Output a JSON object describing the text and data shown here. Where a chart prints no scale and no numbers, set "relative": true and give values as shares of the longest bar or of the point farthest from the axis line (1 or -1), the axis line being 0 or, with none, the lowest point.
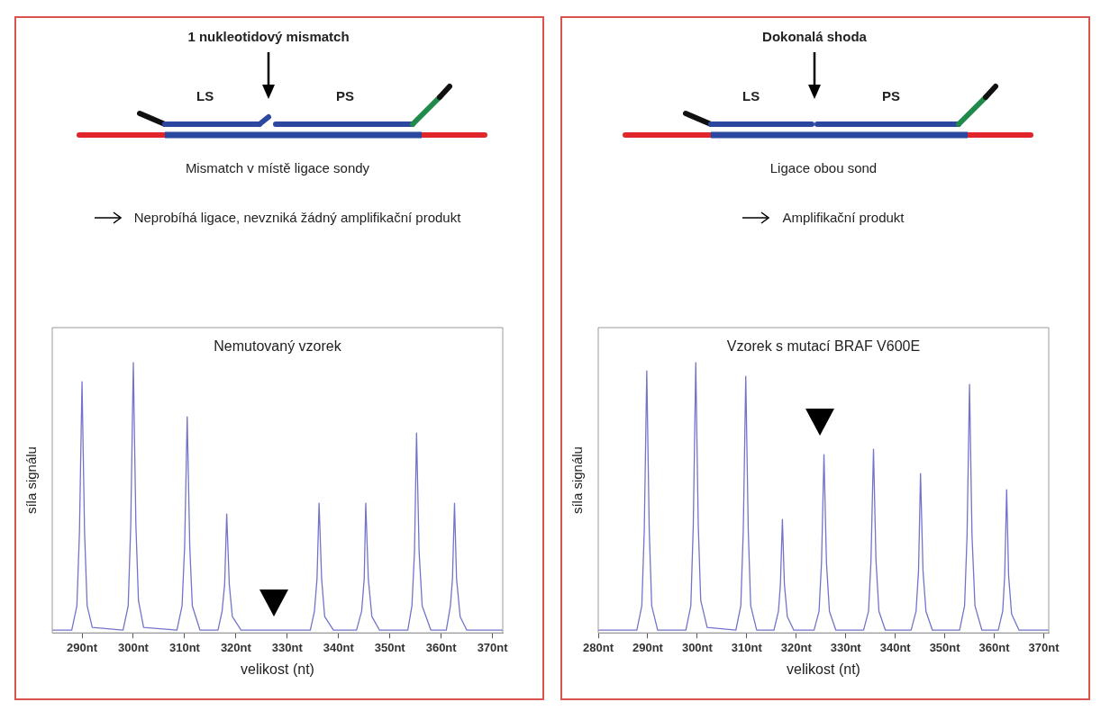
{
  "chart_data": [
    {
      "type": "line",
      "title": "Nemutovaný vzorek",
      "xlabel": "velikost (nt)",
      "ylabel": "síla signálu",
      "relative": true,
      "color": "#7373cc",
      "tick_labels": "x",
      "annotations": [
        "1 nukleotidový mismatch",
        "LS",
        "PS",
        "Mismatch v místě ligace sondy",
        "Neprobíhá ligace, nevzniká žádný amplifikační produkt"
      ],
      "xlim": [
        284.2,
        372
      ],
      "xticks": [
        {
          "value": 290,
          "label": "290nt"
        },
        {
          "value": 300,
          "label": "300nt"
        },
        {
          "value": 310,
          "label": "310nt"
        },
        {
          "value": 320,
          "label": "320nt"
        },
        {
          "value": 330,
          "label": "330nt"
        },
        {
          "value": 340,
          "label": "340nt"
        },
        {
          "value": 350,
          "label": "350nt"
        },
        {
          "value": 360,
          "label": "360nt"
        },
        {
          "value": 370,
          "label": "370nt"
        }
      ],
      "x": [
        284.2,
        288,
        289,
        289.5,
        290,
        290.5,
        291,
        292,
        298,
        299,
        299.5,
        300,
        300.5,
        301,
        302,
        308.5,
        309.5,
        310,
        310.5,
        311,
        311.5,
        313,
        316.5,
        317.3,
        317.8,
        318.2,
        318.7,
        319.3,
        321,
        327,
        334.5,
        335.3,
        335.8,
        336.2,
        336.7,
        337.3,
        339,
        343.5,
        344.5,
        345,
        345.3,
        345.8,
        346.5,
        348,
        353.5,
        354.3,
        354.8,
        355.2,
        355.7,
        356.3,
        358,
        361,
        361.8,
        362.2,
        362.6,
        363,
        363.7,
        365,
        372
      ],
      "values": [
        0.01,
        0.01,
        0.1,
        0.37,
        0.93,
        0.37,
        0.1,
        0.02,
        0.01,
        0.1,
        0.4,
        1,
        0.4,
        0.12,
        0.02,
        0.01,
        0.1,
        0.32,
        0.8,
        0.32,
        0.1,
        0.01,
        0.01,
        0.08,
        0.18,
        0.44,
        0.18,
        0.06,
        0.01,
        0.01,
        0.01,
        0.08,
        0.2,
        0.48,
        0.2,
        0.06,
        0.01,
        0.01,
        0.08,
        0.2,
        0.48,
        0.2,
        0.06,
        0.01,
        0.01,
        0.1,
        0.3,
        0.74,
        0.3,
        0.1,
        0.01,
        0.01,
        0.1,
        0.2,
        0.48,
        0.2,
        0.06,
        0.01,
        0.01
      ]
    },
    {
      "type": "line",
      "title": "Vzorek s mutací BRAF V600E",
      "xlabel": "velikost (nt)",
      "ylabel": "síla signálu",
      "relative": true,
      "color": "#7373cc",
      "tick_labels": "x",
      "annotations": [
        "Dokonalá shoda",
        "LS",
        "PS",
        "Ligace obou sond",
        "Amplifikační produkt"
      ],
      "xlim": [
        280,
        371
      ],
      "xticks": [
        {
          "value": 280,
          "label": "280nt"
        },
        {
          "value": 290,
          "label": "290nt"
        },
        {
          "value": 300,
          "label": "300nt"
        },
        {
          "value": 310,
          "label": "310nt"
        },
        {
          "value": 320,
          "label": "320nt"
        },
        {
          "value": 330,
          "label": "330nt"
        },
        {
          "value": 340,
          "label": "340nt"
        },
        {
          "value": 350,
          "label": "350nt"
        },
        {
          "value": 360,
          "label": "360nt"
        },
        {
          "value": 370,
          "label": "370nt"
        }
      ],
      "x": [
        280,
        287.8,
        288.8,
        289.3,
        289.8,
        290.3,
        290.8,
        292,
        297.7,
        298.7,
        299.2,
        299.7,
        300.2,
        300.7,
        302,
        307.8,
        308.8,
        309.3,
        309.8,
        310.3,
        310.8,
        312,
        315.5,
        316.4,
        316.8,
        317.2,
        317.6,
        318.2,
        319.5,
        323.6,
        324.6,
        325.1,
        325.6,
        326.1,
        326.7,
        328,
        333.6,
        334.6,
        335.1,
        335.6,
        336.1,
        336.7,
        338,
        343.2,
        344.2,
        344.7,
        345.1,
        345.6,
        346.2,
        347.5,
        353,
        354,
        354.5,
        355,
        355.5,
        356.1,
        357.5,
        360.8,
        361.7,
        362.1,
        362.5,
        362.9,
        363.5,
        365,
        371
      ],
      "values": [
        0.01,
        0.01,
        0.1,
        0.38,
        0.97,
        0.38,
        0.1,
        0.01,
        0.01,
        0.1,
        0.4,
        1,
        0.4,
        0.12,
        0.02,
        0.01,
        0.1,
        0.38,
        0.95,
        0.38,
        0.1,
        0.01,
        0.01,
        0.08,
        0.18,
        0.42,
        0.18,
        0.06,
        0.01,
        0.01,
        0.08,
        0.26,
        0.66,
        0.26,
        0.08,
        0.01,
        0.01,
        0.08,
        0.27,
        0.68,
        0.27,
        0.08,
        0.01,
        0.01,
        0.08,
        0.23,
        0.59,
        0.23,
        0.08,
        0.01,
        0.01,
        0.1,
        0.36,
        0.92,
        0.36,
        0.1,
        0.01,
        0.01,
        0.08,
        0.21,
        0.53,
        0.21,
        0.07,
        0.01,
        0.01
      ]
    }
  ]
}
